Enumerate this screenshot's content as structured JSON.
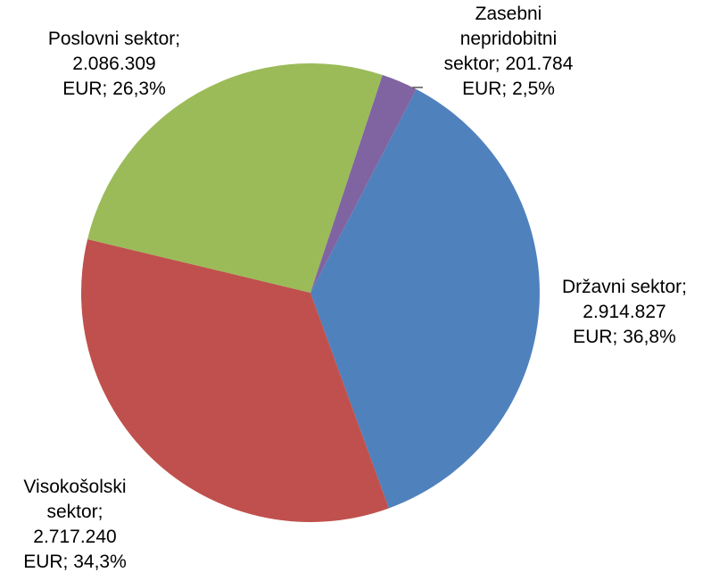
{
  "chart_data": {
    "type": "pie",
    "values": [
      2914827,
      2717240,
      2086309,
      201784
    ],
    "value_labels": [
      [
        "Državni sektor;",
        "2.914.827",
        "EUR; 36,8%"
      ],
      [
        "Visokošolski",
        "sektor;",
        "2.717.240",
        "EUR; 34,3%"
      ],
      [
        "Poslovni sektor;",
        "2.086.309",
        "EUR; 26,3%"
      ],
      [
        "Zasebni",
        "nepridobitni",
        "sektor; 201.784",
        "EUR; 2,5%"
      ]
    ],
    "colors": [
      "#4f81bd",
      "#c0504d",
      "#9bbb59",
      "#8064a2"
    ],
    "start_angle": 27.5
  }
}
